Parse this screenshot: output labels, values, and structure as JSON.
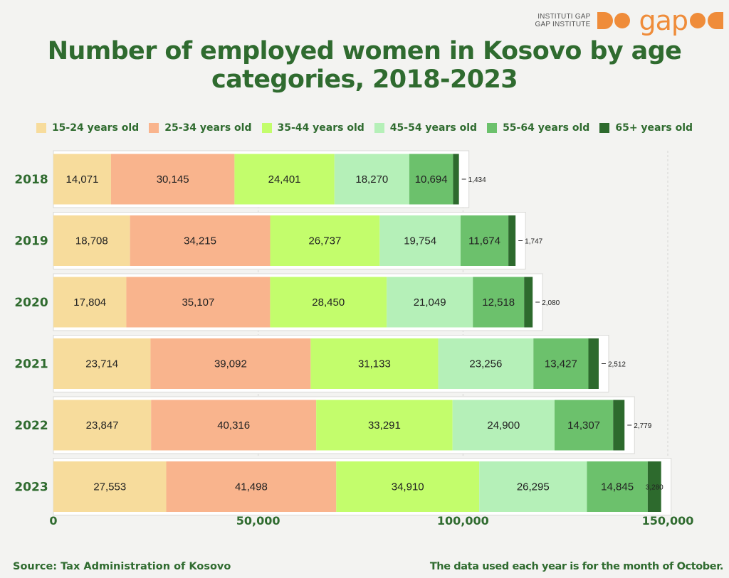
{
  "logo": {
    "line1": "INSTITUTI GAP",
    "line2": "GAP INSTITUTE",
    "wordmark": "gap",
    "color": "#ef8c3a"
  },
  "title": "Number of employed women in Kosovo by age categories, 2018-2023",
  "source": "Source: Tax Administration of Kosovo",
  "note": "The data used each year is for the month of October.",
  "chart_data": {
    "type": "bar",
    "orientation": "horizontal",
    "stacked": true,
    "categories": [
      "2018",
      "2019",
      "2020",
      "2021",
      "2022",
      "2023"
    ],
    "xlim": [
      0,
      150000
    ],
    "xticks": [
      0,
      50000,
      100000,
      150000
    ],
    "xtick_labels": [
      "0",
      "50,000",
      "100,000",
      "150,000"
    ],
    "grid": true,
    "legend_position": "top",
    "series": [
      {
        "name": "15-24 years old",
        "color": "#f7dc9c",
        "values": [
          14071,
          18708,
          17804,
          23714,
          23847,
          27553
        ],
        "labels": [
          "14,071",
          "18,708",
          "17,804",
          "23,714",
          "23,847",
          "27,553"
        ]
      },
      {
        "name": "25-34 years old",
        "color": "#f9b48d",
        "values": [
          30145,
          34215,
          35107,
          39092,
          40316,
          41498
        ],
        "labels": [
          "30,145",
          "34,215",
          "35,107",
          "39,092",
          "40,316",
          "41,498"
        ]
      },
      {
        "name": "35-44 years old",
        "color": "#c3fd6c",
        "values": [
          24401,
          26737,
          28450,
          31133,
          33291,
          34910
        ],
        "labels": [
          "24,401",
          "26,737",
          "28,450",
          "31,133",
          "33,291",
          "34,910"
        ]
      },
      {
        "name": "45-54 years old",
        "color": "#b5f0b8",
        "values": [
          18270,
          19754,
          21049,
          23256,
          24900,
          26295
        ],
        "labels": [
          "18,270",
          "19,754",
          "21,049",
          "23,256",
          "24,900",
          "26,295"
        ]
      },
      {
        "name": "55-64 years old",
        "color": "#6cc16c",
        "values": [
          10694,
          11674,
          12518,
          13427,
          14307,
          14845
        ],
        "labels": [
          "10,694",
          "11,674",
          "12,518",
          "13,427",
          "14,307",
          "14,845"
        ]
      },
      {
        "name": "65+ years old",
        "color": "#2d6a2d",
        "values": [
          1434,
          1747,
          2080,
          2512,
          2779,
          3280
        ],
        "labels": [
          "1,434",
          "1,747",
          "2,080",
          "2,512",
          "2,779",
          "3,280"
        ]
      }
    ]
  }
}
